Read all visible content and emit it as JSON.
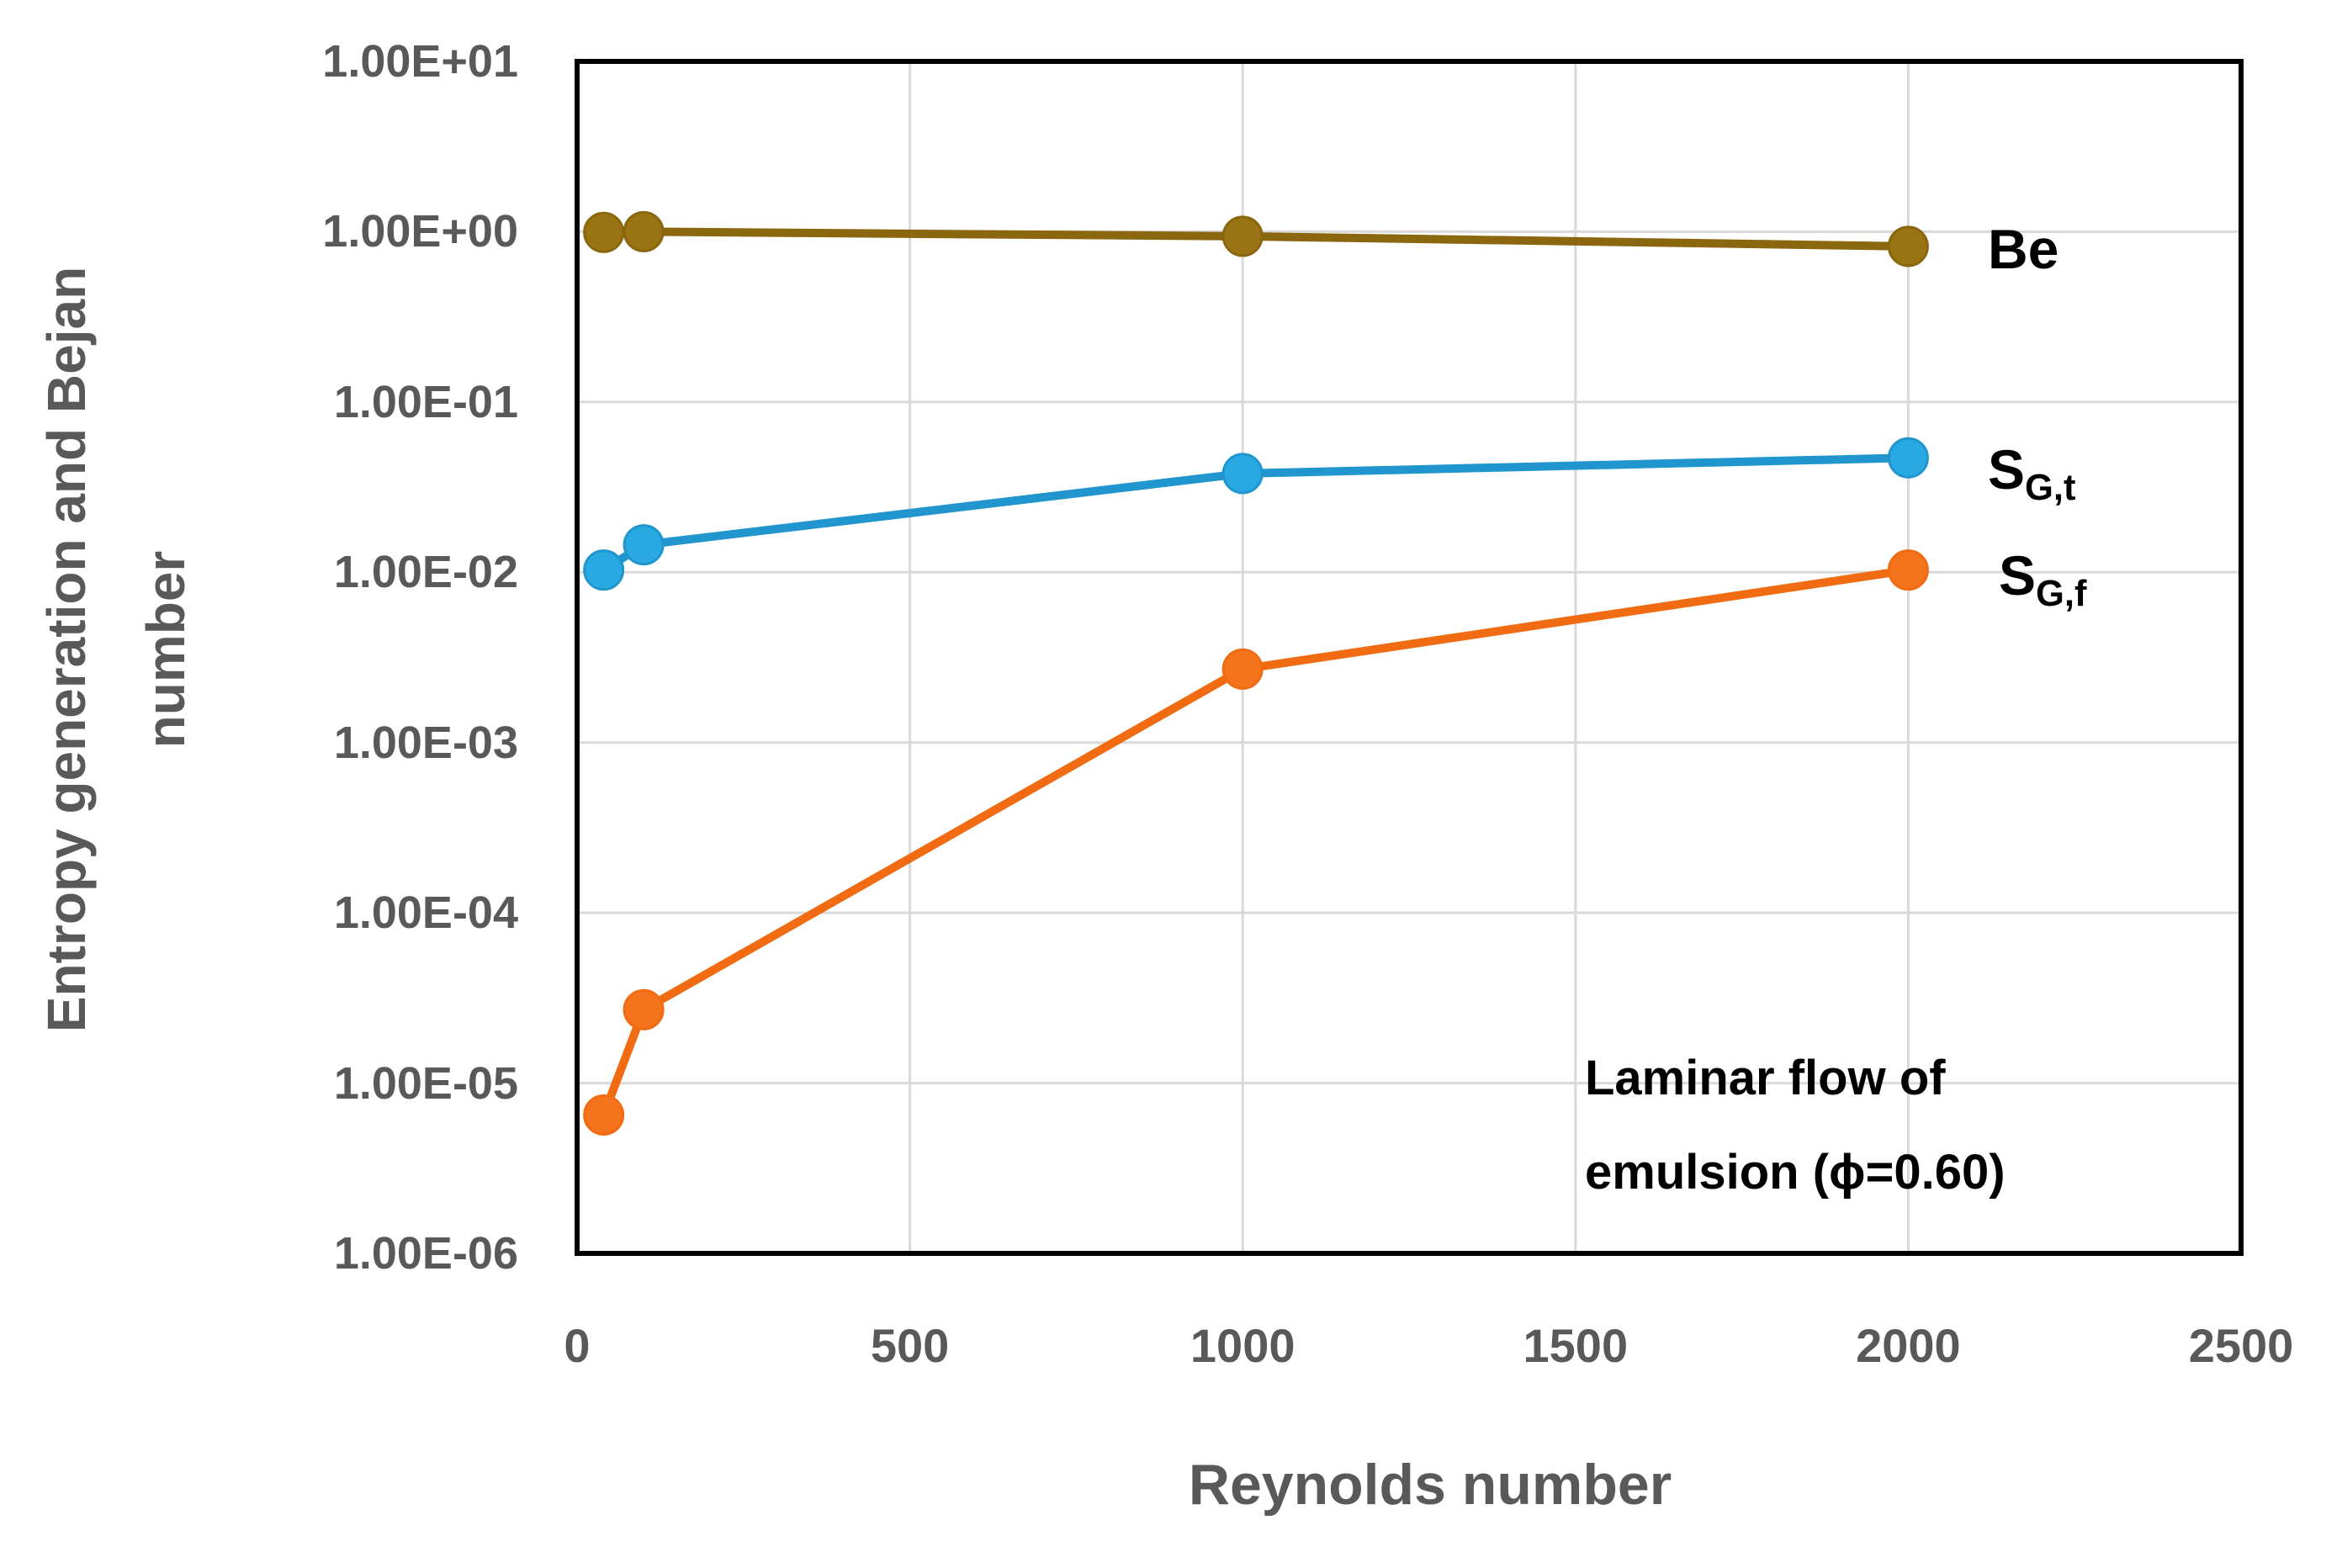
{
  "chart_data": {
    "type": "line",
    "title": "",
    "xlabel": "Reynolds number",
    "ylabel": "Entropy generation and Bejan number",
    "ylabel_lines": [
      "Entropy generation and Bejan",
      "number"
    ],
    "x": [
      40,
      100,
      1000,
      2000
    ],
    "series": [
      {
        "name": "Be",
        "label_base": "Be",
        "label_sub": "",
        "marker_color": "#9A7312",
        "line_color": "#8A670F",
        "values": [
          0.99,
          1.0,
          0.94,
          0.82
        ]
      },
      {
        "name": "S_G,t",
        "label_base": "S",
        "label_sub": "G,t",
        "marker_color": "#29A9E1",
        "line_color": "#2196CE",
        "values": [
          0.0103,
          0.0145,
          0.038,
          0.047
        ]
      },
      {
        "name": "S_G,f",
        "label_base": "S",
        "label_sub": "G,f",
        "marker_color": "#F5731D",
        "line_color": "#F06B12",
        "values": [
          6.5e-06,
          2.7e-05,
          0.0027,
          0.0103
        ]
      }
    ],
    "x_ticks": [
      0,
      500,
      1000,
      1500,
      2000,
      2500
    ],
    "y_tick_labels": [
      "1.00E+01",
      "1.00E+00",
      "1.00E-01",
      "1.00E-02",
      "1.00E-03",
      "1.00E-04",
      "1.00E-05",
      "1.00E-06"
    ],
    "xlim": [
      0,
      2500
    ],
    "ylog_lim": [
      -6,
      1
    ],
    "grid": true,
    "legend_position": "inside-right-labels",
    "annotation_lines": [
      "Laminar flow of",
      "emulsion (ϕ=0.60)"
    ],
    "colors": {
      "grid": "#D9D9D9",
      "axis_border": "#000000",
      "tick_text": "#595959",
      "label_text": "#000000"
    }
  }
}
